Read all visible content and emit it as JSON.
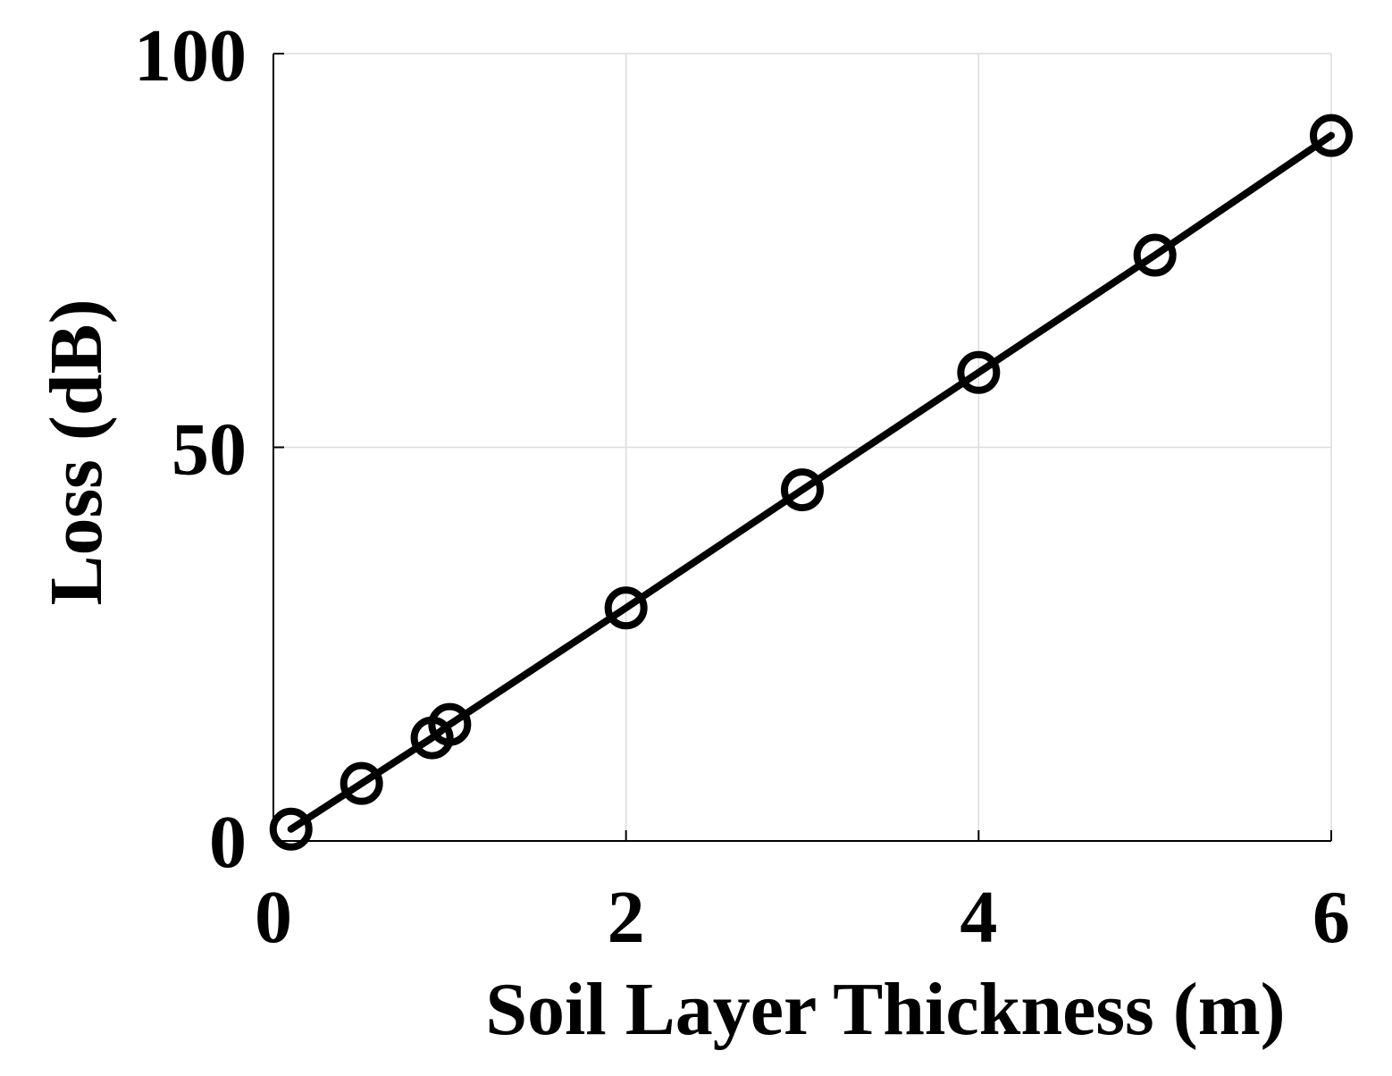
{
  "chart_data": {
    "type": "line",
    "title": "",
    "xlabel": "Soil Layer Thickness (m)",
    "ylabel": "Loss (dB)",
    "xlim": [
      0,
      6
    ],
    "ylim": [
      0,
      100
    ],
    "xticks": [
      0,
      2,
      4,
      6
    ],
    "yticks": [
      0,
      50,
      100
    ],
    "xtick_labels": [
      "0",
      "2",
      "4",
      "6"
    ],
    "ytick_labels": [
      "0",
      "50",
      "100"
    ],
    "grid": true,
    "legend": "none",
    "series": [
      {
        "x": [
          0.1,
          0.5,
          0.9,
          1.0,
          2.0,
          3.0,
          4.0,
          5.0,
          6.0
        ],
        "y": [
          1.5,
          7.3,
          13.1,
          14.8,
          29.6,
          44.6,
          59.5,
          74.4,
          89.6
        ],
        "color": "#000000",
        "marker": "circle"
      }
    ]
  }
}
